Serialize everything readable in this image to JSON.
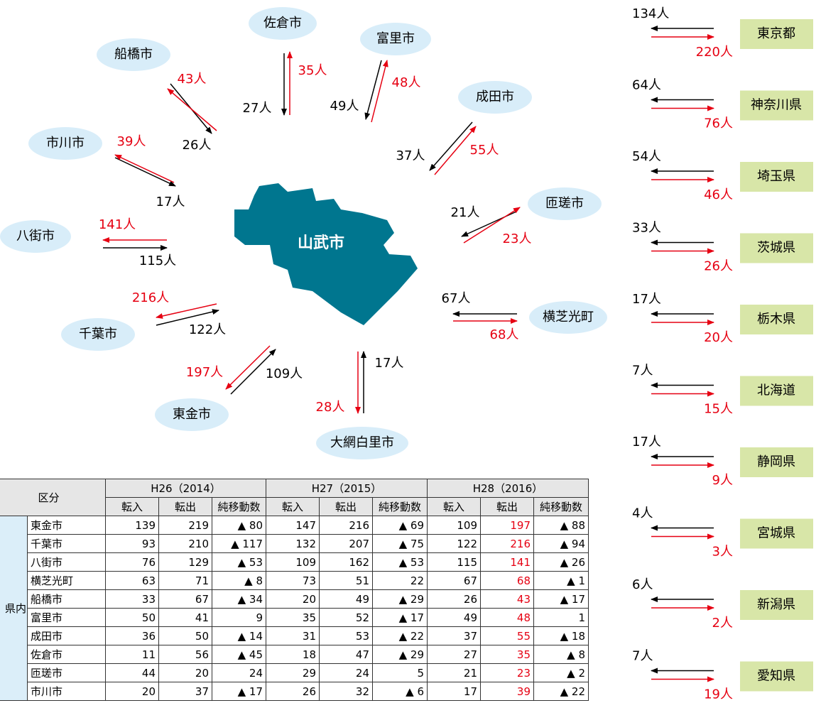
{
  "center": "山武市",
  "cities": [
    {
      "name": "佐倉市",
      "in": "27人",
      "out": "35人"
    },
    {
      "name": "富里市",
      "in": "49人",
      "out": "48人"
    },
    {
      "name": "船橋市",
      "in": "26人",
      "out": "43人"
    },
    {
      "name": "成田市",
      "in": "37人",
      "out": "55人"
    },
    {
      "name": "市川市",
      "in": "17人",
      "out": "39人"
    },
    {
      "name": "匝瑳市",
      "in": "21人",
      "out": "23人"
    },
    {
      "name": "八街市",
      "in": "115人",
      "out": "141人"
    },
    {
      "name": "横芝光町",
      "in": "67人",
      "out": "68人"
    },
    {
      "name": "千葉市",
      "in": "122人",
      "out": "216人"
    },
    {
      "name": "東金市",
      "in": "109人",
      "out": "197人"
    },
    {
      "name": "大網白里市",
      "in": "17人",
      "out": "28人"
    }
  ],
  "prefectures": [
    {
      "name": "東京都",
      "in": "134人",
      "out": "220人"
    },
    {
      "name": "神奈川県",
      "in": "64人",
      "out": "76人"
    },
    {
      "name": "埼玉県",
      "in": "54人",
      "out": "46人"
    },
    {
      "name": "茨城県",
      "in": "33人",
      "out": "26人"
    },
    {
      "name": "栃木県",
      "in": "17人",
      "out": "20人"
    },
    {
      "name": "北海道",
      "in": "7人",
      "out": "15人"
    },
    {
      "name": "静岡県",
      "in": "17人",
      "out": "9人"
    },
    {
      "name": "宮城県",
      "in": "4人",
      "out": "3人"
    },
    {
      "name": "新潟県",
      "in": "6人",
      "out": "2人"
    },
    {
      "name": "愛知県",
      "in": "7人",
      "out": "19人"
    }
  ],
  "table": {
    "corner": "区分",
    "years": [
      "H26（2014）",
      "H27（2015）",
      "H28（2016）"
    ],
    "subheaders": [
      "転入",
      "転出",
      "純移動数",
      "転入",
      "転出",
      "純移動数",
      "転入",
      "転出",
      "純移動数"
    ],
    "group": "県内",
    "rows": [
      {
        "name": "東金市",
        "cells": [
          "139",
          "219",
          "▲ 80",
          "147",
          "216",
          "▲ 69",
          "109",
          "197",
          "▲ 88"
        ]
      },
      {
        "name": "千葉市",
        "cells": [
          "93",
          "210",
          "▲ 117",
          "132",
          "207",
          "▲ 75",
          "122",
          "216",
          "▲ 94"
        ]
      },
      {
        "name": "八街市",
        "cells": [
          "76",
          "129",
          "▲ 53",
          "109",
          "162",
          "▲ 53",
          "115",
          "141",
          "▲ 26"
        ]
      },
      {
        "name": "横芝光町",
        "cells": [
          "63",
          "71",
          "▲ 8",
          "73",
          "51",
          "22",
          "67",
          "68",
          "▲ 1"
        ]
      },
      {
        "name": "船橋市",
        "cells": [
          "33",
          "67",
          "▲ 34",
          "20",
          "49",
          "▲ 29",
          "26",
          "43",
          "▲ 17"
        ]
      },
      {
        "name": "富里市",
        "cells": [
          "50",
          "41",
          "9",
          "35",
          "52",
          "▲ 17",
          "49",
          "48",
          "1"
        ]
      },
      {
        "name": "成田市",
        "cells": [
          "36",
          "50",
          "▲ 14",
          "31",
          "53",
          "▲ 22",
          "37",
          "55",
          "▲ 18"
        ]
      },
      {
        "name": "佐倉市",
        "cells": [
          "11",
          "56",
          "▲ 45",
          "18",
          "47",
          "▲ 29",
          "27",
          "35",
          "▲ 8"
        ]
      },
      {
        "name": "匝瑳市",
        "cells": [
          "44",
          "20",
          "24",
          "29",
          "24",
          "5",
          "21",
          "23",
          "▲ 2"
        ]
      },
      {
        "name": "市川市",
        "cells": [
          "20",
          "37",
          "▲ 17",
          "26",
          "32",
          "▲ 6",
          "17",
          "39",
          "▲ 22"
        ]
      }
    ]
  }
}
